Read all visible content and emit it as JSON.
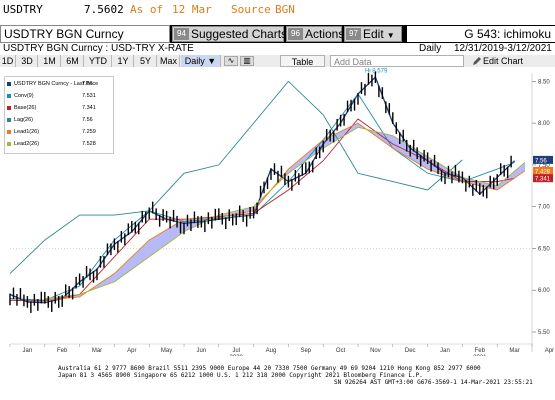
{
  "ticker_line": {
    "ticker": "USDTRY",
    "price": "7.5602",
    "as_of_label": "As of",
    "as_of_date": "12 Mar",
    "source_label": "Source",
    "source": "BGN"
  },
  "title_bar": {
    "security": "USDTRY BGN Curncy",
    "menus": [
      {
        "num": "94",
        "label": "Suggested Charts"
      },
      {
        "num": "96",
        "label": "Actions"
      },
      {
        "num": "97",
        "label": "Edit"
      }
    ],
    "study_label": "G 543: ichimoku"
  },
  "chart_header": {
    "name": "USDTRY BGN Curncy : USD-TRY X-RATE",
    "period": "Daily",
    "range": "12/31/2019-3/12/2021"
  },
  "toolbar": {
    "periods": [
      "1D",
      "3D",
      "1M",
      "6M",
      "YTD",
      "1Y",
      "5Y",
      "Max"
    ],
    "frequency": "Daily",
    "table_label": "Table",
    "add_data_placeholder": "Add Data",
    "edit_chart_label": "Edit Chart"
  },
  "legend": [
    {
      "name": "USDTRY BGN Curncy - Last Price",
      "value": "7.56",
      "color": "#1f3d7a"
    },
    {
      "name": "Conv(9)",
      "value": "7.531",
      "color": "#1b8fb0"
    },
    {
      "name": "Base(26)",
      "value": "7.341",
      "color": "#c0202a"
    },
    {
      "name": "Lag(26)",
      "value": "7.56",
      "color": "#2a8a8a"
    },
    {
      "name": "Lead1(26)",
      "value": "7.259",
      "color": "#f07a1a"
    },
    {
      "name": "Lead2(26)",
      "value": "7.528",
      "color": "#a6b63a"
    }
  ],
  "chart_data": {
    "type": "line",
    "x_ticks": [
      "Jan",
      "Feb",
      "Mar",
      "Apr",
      "May",
      "Jun",
      "Jul",
      "Aug",
      "Sep",
      "Oct",
      "Nov",
      "Dec",
      "Jan",
      "Feb",
      "Mar",
      "Apr"
    ],
    "year_labels": [
      "2020",
      "2021"
    ],
    "y_ticks": [
      "8.50",
      "8.00",
      "7.50",
      "7.00",
      "6.50",
      "6.00",
      "5.50"
    ],
    "ylim": [
      5.5,
      8.6
    ],
    "grid": false,
    "annotation": "Hi 8.579",
    "last_value_tags": [
      {
        "value": "7.56",
        "color": "#1f3d7a"
      },
      {
        "value": "7.428",
        "color": "#f07a1a"
      },
      {
        "value": "7.341",
        "color": "#c0202a"
      }
    ],
    "series": [
      {
        "name": "USDTRY BGN Curncy - Last Price",
        "color": "#1f3d7a",
        "x": [
          0,
          0.5,
          1,
          1.5,
          2,
          2.5,
          3,
          3.5,
          4,
          4.5,
          5,
          5.5,
          6,
          6.5,
          7,
          7.5,
          8,
          8.5,
          9,
          9.5,
          10,
          10.5,
          11,
          11.5,
          12,
          12.5,
          13,
          13.5,
          14,
          14.5
        ],
        "values": [
          5.95,
          5.86,
          5.85,
          5.9,
          6.1,
          6.25,
          6.55,
          6.7,
          6.95,
          6.85,
          6.8,
          6.82,
          6.85,
          6.88,
          6.9,
          7.45,
          7.3,
          7.4,
          7.75,
          8.0,
          8.35,
          8.55,
          8.0,
          7.7,
          7.55,
          7.4,
          7.35,
          7.15,
          7.35,
          7.55
        ]
      },
      {
        "name": "Conv(9)",
        "color": "#1b8fb0",
        "x": [
          0,
          1,
          2,
          3,
          4,
          5,
          6,
          7,
          8,
          9,
          10,
          11,
          12,
          13,
          14,
          14.5
        ],
        "values": [
          5.9,
          5.88,
          6.05,
          6.6,
          6.95,
          6.82,
          6.86,
          6.9,
          7.3,
          7.8,
          8.35,
          7.7,
          7.4,
          7.3,
          7.45,
          7.53
        ]
      },
      {
        "name": "Base(26)",
        "color": "#c0202a",
        "x": [
          0,
          1,
          2,
          3,
          4,
          5,
          6,
          7,
          8,
          9,
          10,
          11,
          12,
          13,
          14,
          14.5
        ],
        "values": [
          5.88,
          5.87,
          5.95,
          6.4,
          6.85,
          6.85,
          6.88,
          6.92,
          7.2,
          7.55,
          8.05,
          7.75,
          7.55,
          7.3,
          7.3,
          7.34
        ]
      },
      {
        "name": "Lag(26)",
        "color": "#2a8a8a",
        "x": [
          0,
          1,
          2,
          3,
          4,
          5,
          6,
          7,
          8,
          9,
          10,
          11,
          12,
          13
        ],
        "values": [
          6.2,
          6.6,
          6.9,
          6.9,
          6.95,
          7.4,
          7.5,
          8.0,
          8.5,
          8.1,
          7.4,
          7.3,
          7.2,
          7.56
        ]
      },
      {
        "name": "Lead1(26)",
        "color": "#f07a1a",
        "x": [
          1,
          2,
          3,
          4,
          5,
          6,
          7,
          8,
          9,
          10,
          11,
          12,
          13,
          14,
          14.8
        ],
        "values": [
          5.88,
          5.92,
          6.2,
          6.6,
          6.85,
          6.87,
          6.95,
          7.45,
          7.8,
          8.0,
          7.7,
          7.45,
          7.3,
          7.2,
          7.43
        ]
      },
      {
        "name": "Lead2(26)",
        "color": "#a6b63a",
        "x": [
          1,
          2,
          3,
          4,
          5,
          6,
          7,
          8,
          9,
          10,
          11,
          12,
          13,
          14,
          14.8
        ],
        "values": [
          5.9,
          5.95,
          6.1,
          6.4,
          6.7,
          6.9,
          7.0,
          7.4,
          7.7,
          7.95,
          7.85,
          7.6,
          7.35,
          7.25,
          7.53
        ]
      }
    ]
  },
  "footer": {
    "line1": "Australia 61 2 9777 8600 Brazil 5511 2395 9000 Europe 44 20 7330 7500 Germany 49 69 9204 1210 Hong Kong 852 2977 6000",
    "line2": "Japan 81 3 4565 8900        Singapore 65 6212 1000      U.S. 1 212 318 2000            Copyright 2021 Bloomberg Finance L.P.",
    "line3": "SN 926264 AST  GMT+3:00 G676-3569-1 14-Mar-2021 23:55:21"
  }
}
